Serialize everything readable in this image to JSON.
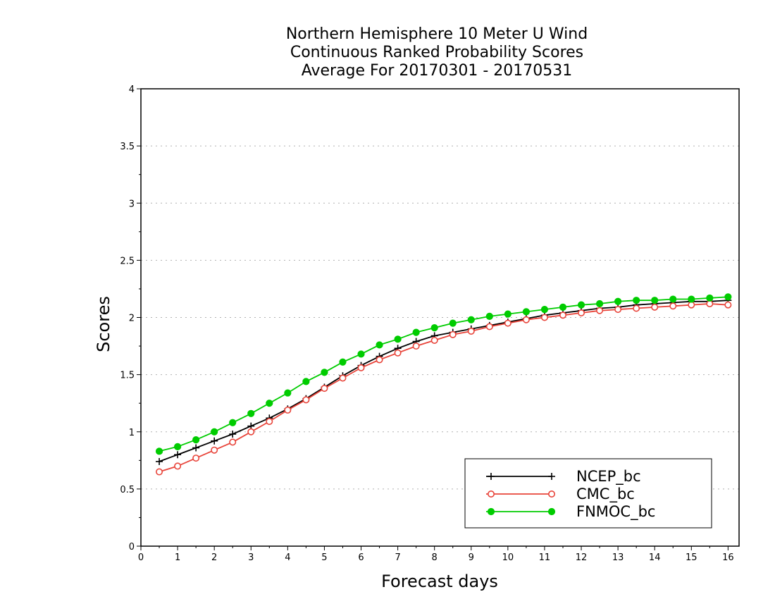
{
  "chart_data": {
    "type": "line",
    "title": [
      "Northern Hemisphere 10 Meter U Wind",
      "Continuous Ranked Probability Scores",
      "Average For 20170301 - 20170531"
    ],
    "xlabel": "Forecast days",
    "ylabel": "Scores",
    "xlim": [
      0,
      16.3
    ],
    "ylim": [
      0,
      4
    ],
    "x_ticks": [
      "0",
      "1",
      "2",
      "3",
      "4",
      "5",
      "6",
      "7",
      "8",
      "9",
      "10",
      "11",
      "12",
      "13",
      "14",
      "15",
      "16"
    ],
    "y_ticks": [
      "0",
      "0.5",
      "1",
      "1.5",
      "2",
      "2.5",
      "3",
      "3.5",
      "4"
    ],
    "grid": "horizontal dotted",
    "legend_position": "bottom-right",
    "x": [
      0.5,
      1,
      1.5,
      2,
      2.5,
      3,
      3.5,
      4,
      4.5,
      5,
      5.5,
      6,
      6.5,
      7,
      7.5,
      8,
      8.5,
      9,
      9.5,
      10,
      10.5,
      11,
      11.5,
      12,
      12.5,
      13,
      13.5,
      14,
      14.5,
      15,
      15.5,
      16
    ],
    "series": [
      {
        "name": "NCEP_bc",
        "color": "#000000",
        "marker": "plus",
        "values": [
          0.74,
          0.8,
          0.86,
          0.92,
          0.98,
          1.05,
          1.12,
          1.2,
          1.29,
          1.39,
          1.49,
          1.58,
          1.66,
          1.73,
          1.79,
          1.84,
          1.87,
          1.9,
          1.93,
          1.96,
          1.99,
          2.02,
          2.04,
          2.06,
          2.08,
          2.09,
          2.11,
          2.12,
          2.13,
          2.14,
          2.14,
          2.15
        ]
      },
      {
        "name": "CMC_bc",
        "color": "#e8443a",
        "marker": "open-circle",
        "values": [
          0.65,
          0.7,
          0.77,
          0.84,
          0.91,
          1.0,
          1.09,
          1.19,
          1.28,
          1.38,
          1.47,
          1.56,
          1.63,
          1.69,
          1.75,
          1.8,
          1.85,
          1.88,
          1.92,
          1.95,
          1.98,
          2.0,
          2.02,
          2.04,
          2.06,
          2.07,
          2.08,
          2.09,
          2.1,
          2.11,
          2.12,
          2.11
        ]
      },
      {
        "name": "FNMOC_bc",
        "color": "#00cc00",
        "marker": "filled-circle",
        "values": [
          0.83,
          0.87,
          0.93,
          1.0,
          1.08,
          1.16,
          1.25,
          1.34,
          1.44,
          1.52,
          1.61,
          1.68,
          1.76,
          1.81,
          1.87,
          1.91,
          1.95,
          1.98,
          2.01,
          2.03,
          2.05,
          2.07,
          2.09,
          2.11,
          2.12,
          2.14,
          2.15,
          2.15,
          2.16,
          2.16,
          2.17,
          2.18
        ]
      }
    ]
  }
}
